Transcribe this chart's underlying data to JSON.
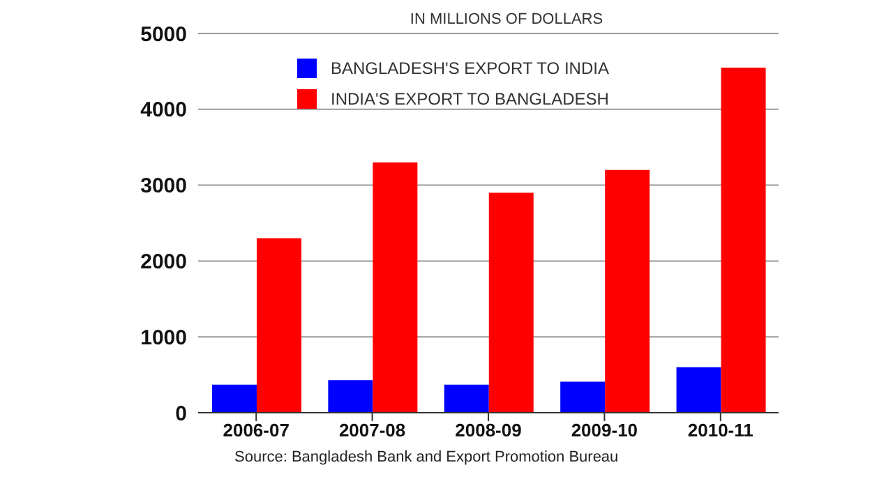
{
  "chart_data": {
    "type": "bar",
    "title": "IN MILLIONS OF DOLLARS",
    "categories": [
      "2006-07",
      "2007-08",
      "2008-09",
      "2009-10",
      "2010-11"
    ],
    "series": [
      {
        "name": "BANGLADESH'S EXPORT TO INDIA",
        "color": "#0000ff",
        "values": [
          370,
          430,
          370,
          410,
          600
        ]
      },
      {
        "name": "INDIA'S EXPORT TO BANGLADESH",
        "color": "#ff0000",
        "values": [
          2300,
          3300,
          2900,
          3200,
          4550
        ]
      }
    ],
    "ylim": [
      0,
      5000
    ],
    "yticks": [
      0,
      1000,
      2000,
      3000,
      4000,
      5000
    ],
    "grid": "y",
    "legend": "top left",
    "annotations": [
      "Source: Bangladesh Bank and Export Promotion Bureau"
    ]
  }
}
